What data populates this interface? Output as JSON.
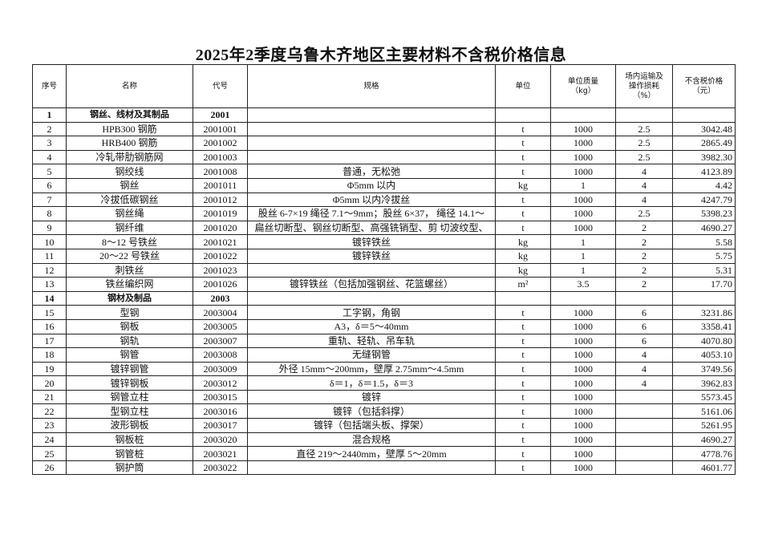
{
  "title": "2025年2季度乌鲁木齐地区主要材料不含税价格信息",
  "table": {
    "headers": [
      "序号",
      "名称",
      "代号",
      "规格",
      "单位",
      "单位质量（kg）",
      "场内运输及操作损耗（%）",
      "不含税价格（元）"
    ],
    "rows": [
      {
        "no": "1",
        "name": "钢丝、线材及其制品",
        "code": "2001",
        "spec": "",
        "unit": "",
        "mass": "",
        "loss": "",
        "price": "",
        "bold": true
      },
      {
        "no": "2",
        "name": "HPB300 钢筋",
        "code": "2001001",
        "spec": "",
        "unit": "t",
        "mass": "1000",
        "loss": "2.5",
        "price": "3042.48"
      },
      {
        "no": "3",
        "name": "HRB400 钢筋",
        "code": "2001002",
        "spec": "",
        "unit": "t",
        "mass": "1000",
        "loss": "2.5",
        "price": "2865.49"
      },
      {
        "no": "4",
        "name": "冷轧带肋钢筋网",
        "code": "2001003",
        "spec": "",
        "unit": "t",
        "mass": "1000",
        "loss": "2.5",
        "price": "3982.30"
      },
      {
        "no": "5",
        "name": "钢绞线",
        "code": "2001008",
        "spec": "普通，无松弛",
        "unit": "t",
        "mass": "1000",
        "loss": "4",
        "price": "4123.89"
      },
      {
        "no": "6",
        "name": "钢丝",
        "code": "2001011",
        "spec": "Φ5mm 以内",
        "unit": "kg",
        "mass": "1",
        "loss": "4",
        "price": "4.42"
      },
      {
        "no": "7",
        "name": "冷拔低碳钢丝",
        "code": "2001012",
        "spec": "Φ5mm 以内冷拔丝",
        "unit": "t",
        "mass": "1000",
        "loss": "4",
        "price": "4247.79"
      },
      {
        "no": "8",
        "name": "钢丝绳",
        "code": "2001019",
        "spec": "股丝 6-7×19 绳径 7.1～9mm；股丝 6×37， 绳径 14.1～",
        "unit": "t",
        "mass": "1000",
        "loss": "2.5",
        "price": "5398.23"
      },
      {
        "no": "9",
        "name": "钢纤维",
        "code": "2001020",
        "spec": "扁丝切断型、钢丝切断型、高强铣销型、剪 切波纹型、",
        "unit": "t",
        "mass": "1000",
        "loss": "2",
        "price": "4690.27"
      },
      {
        "no": "10",
        "name": "8～12 号铁丝",
        "code": "2001021",
        "spec": "镀锌铁丝",
        "unit": "kg",
        "mass": "1",
        "loss": "2",
        "price": "5.58"
      },
      {
        "no": "11",
        "name": "20～22 号铁丝",
        "code": "2001022",
        "spec": "镀锌铁丝",
        "unit": "kg",
        "mass": "1",
        "loss": "2",
        "price": "5.75"
      },
      {
        "no": "12",
        "name": "刺铁丝",
        "code": "2001023",
        "spec": "",
        "unit": "kg",
        "mass": "1",
        "loss": "2",
        "price": "5.31"
      },
      {
        "no": "13",
        "name": "铁丝编织网",
        "code": "2001026",
        "spec": "镀锌铁丝（包括加强钢丝、花篮螺丝）",
        "unit": "m²",
        "mass": "3.5",
        "loss": "2",
        "price": "17.70"
      },
      {
        "no": "14",
        "name": "钢材及制品",
        "code": "2003",
        "spec": "",
        "unit": "",
        "mass": "",
        "loss": "",
        "price": "",
        "bold": true
      },
      {
        "no": "15",
        "name": "型钢",
        "code": "2003004",
        "spec": "工字钢，角钢",
        "unit": "t",
        "mass": "1000",
        "loss": "6",
        "price": "3231.86"
      },
      {
        "no": "16",
        "name": "钢板",
        "code": "2003005",
        "spec": "A3，δ＝5～40mm",
        "unit": "t",
        "mass": "1000",
        "loss": "6",
        "price": "3358.41"
      },
      {
        "no": "17",
        "name": "钢轨",
        "code": "2003007",
        "spec": "重轨、轻轨、吊车轨",
        "unit": "t",
        "mass": "1000",
        "loss": "6",
        "price": "4070.80"
      },
      {
        "no": "18",
        "name": "钢管",
        "code": "2003008",
        "spec": "无缝钢管",
        "unit": "t",
        "mass": "1000",
        "loss": "4",
        "price": "4053.10"
      },
      {
        "no": "19",
        "name": "镀锌钢管",
        "code": "2003009",
        "spec": "外径 15mm～200mm，壁厚 2.75mm～4.5mm",
        "unit": "t",
        "mass": "1000",
        "loss": "4",
        "price": "3749.56"
      },
      {
        "no": "20",
        "name": "镀锌钢板",
        "code": "2003012",
        "spec": "δ＝1，δ＝1.5，δ＝3",
        "unit": "t",
        "mass": "1000",
        "loss": "4",
        "price": "3962.83"
      },
      {
        "no": "21",
        "name": "钢管立柱",
        "code": "2003015",
        "spec": "镀锌",
        "unit": "t",
        "mass": "1000",
        "loss": "",
        "price": "5573.45"
      },
      {
        "no": "22",
        "name": "型钢立柱",
        "code": "2003016",
        "spec": "镀锌（包括斜撑）",
        "unit": "t",
        "mass": "1000",
        "loss": "",
        "price": "5161.06"
      },
      {
        "no": "23",
        "name": "波形钢板",
        "code": "2003017",
        "spec": "镀锌（包括端头板、撑架）",
        "unit": "t",
        "mass": "1000",
        "loss": "",
        "price": "5261.95"
      },
      {
        "no": "24",
        "name": "钢板桩",
        "code": "2003020",
        "spec": "混合规格",
        "unit": "t",
        "mass": "1000",
        "loss": "",
        "price": "4690.27"
      },
      {
        "no": "25",
        "name": "钢管桩",
        "code": "2003021",
        "spec": "直径 219～2440mm，壁厚 5～20mm",
        "unit": "t",
        "mass": "1000",
        "loss": "",
        "price": "4778.76"
      },
      {
        "no": "26",
        "name": "钢护筒",
        "code": "2003022",
        "spec": "",
        "unit": "t",
        "mass": "1000",
        "loss": "",
        "price": "4601.77"
      }
    ]
  }
}
